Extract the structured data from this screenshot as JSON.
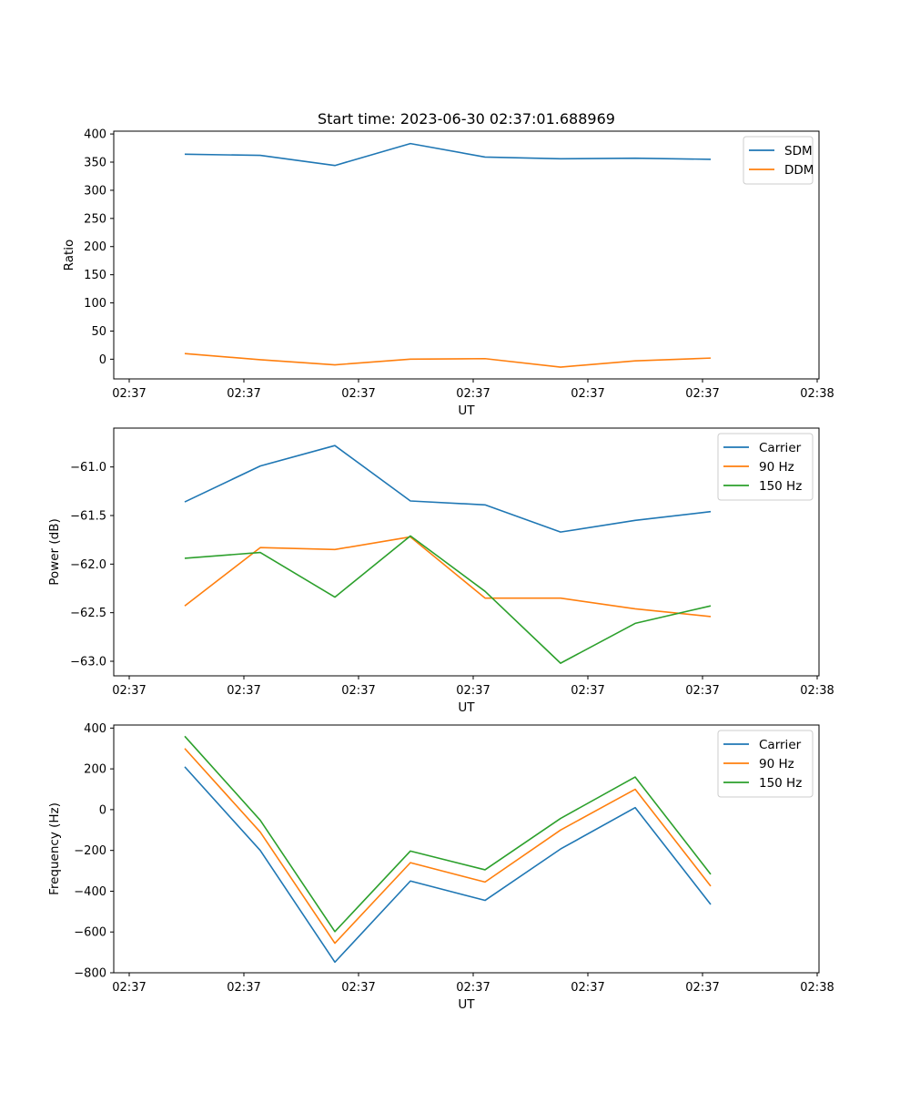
{
  "chart_data": [
    {
      "type": "line",
      "title": "Start time: 2023-06-30 02:37:01.688969",
      "xlabel": "UT",
      "ylabel": "Ratio",
      "x_tick_labels": [
        "02:37",
        "02:37",
        "02:37",
        "02:37",
        "02:37",
        "02:37",
        "02:37",
        "02:38"
      ],
      "ylim": [
        -35,
        405
      ],
      "yticks": [
        0,
        50,
        100,
        150,
        200,
        250,
        300,
        350,
        400
      ],
      "ytick_labels": [
        "0",
        "50",
        "100",
        "150",
        "200",
        "250",
        "300",
        "350",
        "400"
      ],
      "legend": "top-right",
      "series": [
        {
          "name": "SDM",
          "color": "#1f77b4",
          "values": [
            364,
            362,
            344,
            383,
            359,
            356,
            357,
            355
          ]
        },
        {
          "name": "DDM",
          "color": "#ff7f0e",
          "values": [
            10,
            -1,
            -10,
            0,
            1,
            -14,
            -3,
            2
          ]
        }
      ]
    },
    {
      "type": "line",
      "title": "",
      "xlabel": "UT",
      "ylabel": "Power (dB)",
      "x_tick_labels": [
        "02:37",
        "02:37",
        "02:37",
        "02:37",
        "02:37",
        "02:37",
        "02:37",
        "02:38"
      ],
      "ylim": [
        -63.15,
        -60.6
      ],
      "yticks": [
        -63.0,
        -62.5,
        -62.0,
        -61.5,
        -61.0
      ],
      "ytick_labels": [
        "−63.0",
        "−62.5",
        "−62.0",
        "−61.5",
        "−61.0"
      ],
      "legend": "top-right",
      "series": [
        {
          "name": "Carrier",
          "color": "#1f77b4",
          "values": [
            -61.36,
            -60.99,
            -60.78,
            -61.35,
            -61.39,
            -61.67,
            -61.55,
            -61.46
          ]
        },
        {
          "name": "90 Hz",
          "color": "#ff7f0e",
          "values": [
            -62.43,
            -61.83,
            -61.85,
            -61.72,
            -62.35,
            -62.35,
            -62.46,
            -62.54
          ]
        },
        {
          "name": "150 Hz",
          "color": "#2ca02c",
          "values": [
            -61.94,
            -61.88,
            -62.34,
            -61.71,
            -62.28,
            -63.02,
            -62.61,
            -62.43
          ]
        }
      ]
    },
    {
      "type": "line",
      "title": "",
      "xlabel": "UT",
      "ylabel": "Frequency (Hz)",
      "x_tick_labels": [
        "02:37",
        "02:37",
        "02:37",
        "02:37",
        "02:37",
        "02:37",
        "02:37",
        "02:38"
      ],
      "ylim": [
        -800,
        415
      ],
      "yticks": [
        -800,
        -600,
        -400,
        -200,
        0,
        200,
        400
      ],
      "ytick_labels": [
        "−800",
        "−600",
        "−400",
        "−200",
        "0",
        "200",
        "400"
      ],
      "legend": "top-right",
      "series": [
        {
          "name": "Carrier",
          "color": "#1f77b4",
          "values": [
            210,
            -200,
            -748,
            -350,
            -445,
            -193,
            10,
            -465
          ]
        },
        {
          "name": "90 Hz",
          "color": "#ff7f0e",
          "values": [
            300,
            -110,
            -655,
            -260,
            -355,
            -100,
            100,
            -375
          ]
        },
        {
          "name": "150 Hz",
          "color": "#2ca02c",
          "values": [
            360,
            -52,
            -598,
            -203,
            -295,
            -43,
            160,
            -317
          ]
        }
      ]
    }
  ]
}
